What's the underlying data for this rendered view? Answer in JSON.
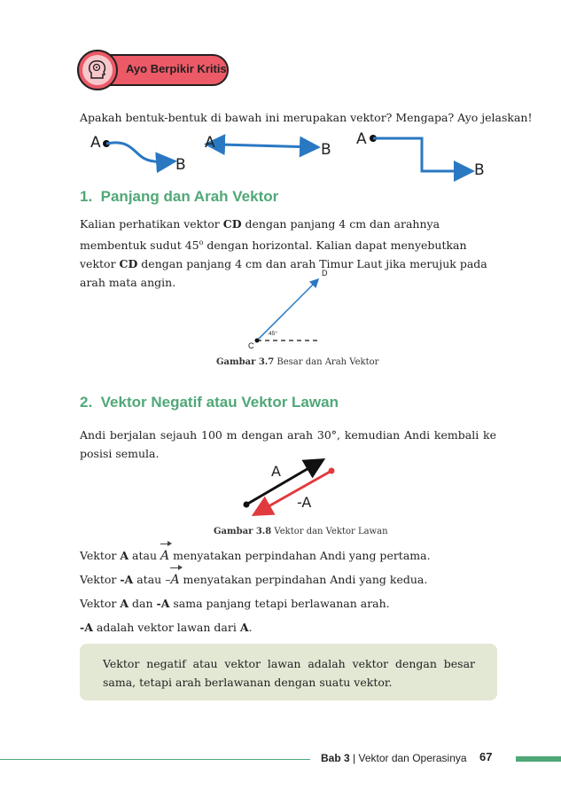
{
  "badge": {
    "label": "Ayo Berpikir Kritis",
    "icon": "brain-head-icon",
    "color": "#ec5a67"
  },
  "intro_question": "Apakah bentuk-bentuk di bawah ini merupakan vektor? Mengapa? Ayo jelaskan!",
  "shapes": [
    {
      "start": "A",
      "end": "B"
    },
    {
      "start": "A",
      "end": "B"
    },
    {
      "start": "A",
      "end": "B"
    }
  ],
  "section1": {
    "number": "1.",
    "title": "Panjang dan Arah Vektor",
    "para": {
      "p1": "Kalian perhatikan vektor ",
      "b1": "CD",
      "p2": " dengan panjang 4 cm dan arahnya membentuk sudut 45",
      "sup": "o",
      "p3": " dengan horizontal. Kalian dapat menyebutkan vektor ",
      "b2": "CD",
      "p4": " dengan panjang 4 cm dan arah Timur Laut jika merujuk pada arah mata angin."
    },
    "figure": {
      "label_d": "D",
      "label_c": "C",
      "angle": "45°"
    },
    "caption": {
      "bold": "Gambar 3.7",
      "text": " Besar dan Arah Vektor"
    }
  },
  "section2": {
    "number": "2.",
    "title": "Vektor Negatif atau Vektor Lawan",
    "para": "Andi berjalan sejauh 100 m dengan arah 30°, kemudian Andi kembali ke posisi semula.",
    "figure": {
      "label_a": "A",
      "label_neg_a": "-A"
    },
    "caption": {
      "bold": "Gambar 3.8",
      "text": " Vektor dan Vektor Lawan"
    },
    "lines": [
      {
        "pre": "Vektor ",
        "bold": "A",
        "mid": " atau ",
        "sym_prefix": "",
        "sym": "A",
        "post": " menyatakan perpindahan Andi yang pertama."
      },
      {
        "pre": "Vektor ",
        "bold": "-A",
        "mid": " atau ",
        "sym_prefix": "–",
        "sym": "A",
        "post": " menyatakan perpindahan Andi yang kedua."
      }
    ],
    "line3": {
      "pre": "Vektor ",
      "b1": "A",
      "mid": " dan ",
      "b2": "-A",
      "post": " sama panjang tetapi berlawanan arah."
    },
    "line4": {
      "b1": "-A",
      "mid": " adalah vektor lawan dari ",
      "b2": "A",
      "post": "."
    }
  },
  "note": "Vektor negatif atau vektor lawan adalah vektor dengan besar sama, tetapi arah berlawanan dengan suatu vektor.",
  "footer": {
    "chapter": "Bab 3",
    "separator": " | ",
    "title": "Vektor dan Operasinya",
    "page": "67"
  },
  "colors": {
    "accent_green": "#4fa877",
    "arrow_blue": "#2a78c2",
    "arrow_red": "#e03a3e",
    "note_bg": "#e3e8d4"
  }
}
